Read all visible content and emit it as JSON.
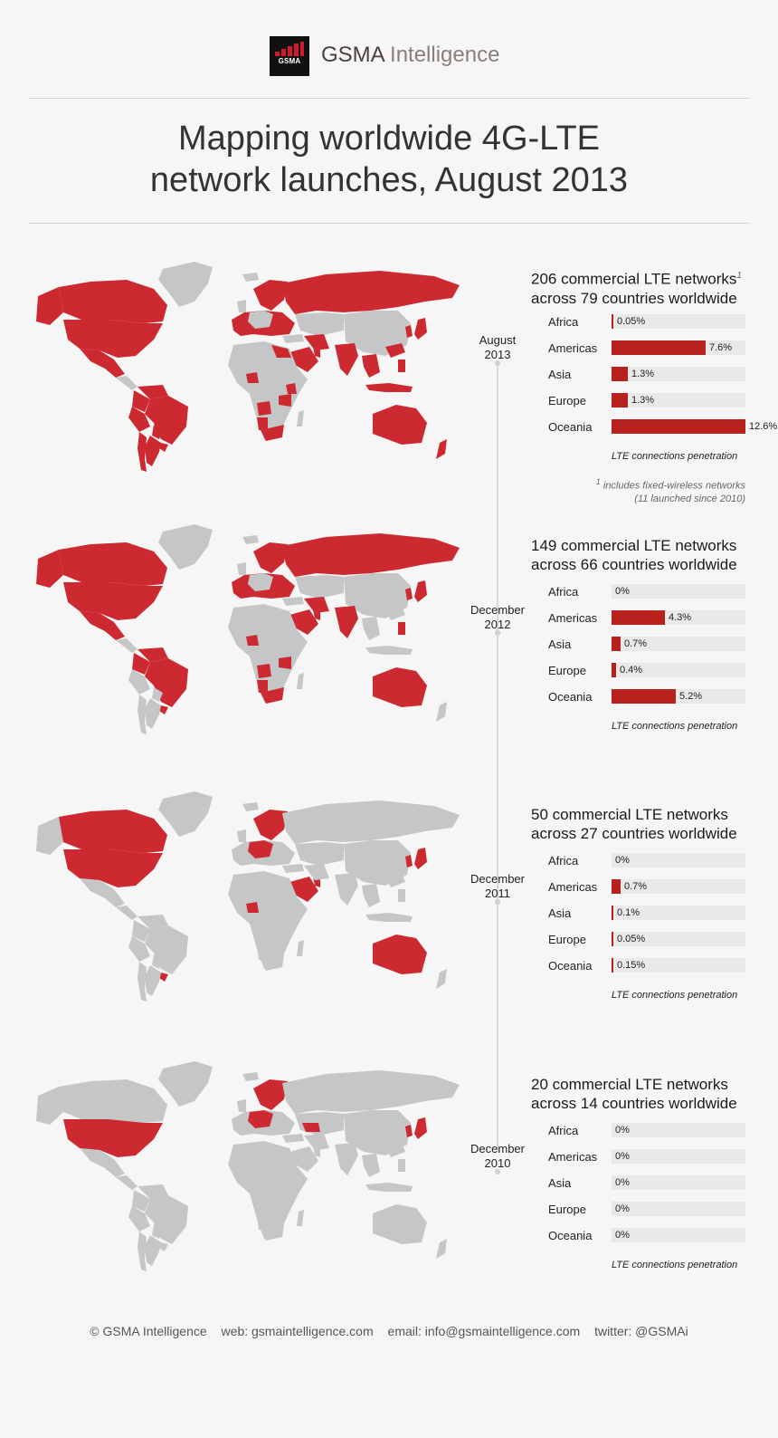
{
  "brand": {
    "name_bold": "GSMA",
    "name_light": " Intelligence",
    "logo_text": "GSMA"
  },
  "title": {
    "line1": "Mapping worldwide 4G-LTE",
    "line2": "network launches, August 2013"
  },
  "colors": {
    "highlight": "#cc2a30",
    "land": "#c5c6c8",
    "bar": "#b8211c"
  },
  "caption": "LTE connections penetration",
  "footnote": {
    "mark": "1",
    "line1": "includes fixed-wireless networks",
    "line2": "(11 launched since 2010)"
  },
  "panels": [
    {
      "date_line1": "August",
      "date_line2": "2013",
      "headline1": "206 commercial LTE networks",
      "headline2": "across 79 countries worldwide",
      "headline_mark": "1",
      "regions": [
        {
          "name": "Africa",
          "label": "0.05%",
          "value": 0.05
        },
        {
          "name": "Americas",
          "label": "7.6%",
          "value": 7.6
        },
        {
          "name": "Asia",
          "label": "1.3%",
          "value": 1.3
        },
        {
          "name": "Europe",
          "label": "1.3%",
          "value": 1.3
        },
        {
          "name": "Oceania",
          "label": "12.6%",
          "value": 12.6
        }
      ],
      "highlighted": [
        "usa",
        "canada",
        "alaska",
        "mexico",
        "brazil",
        "venezuela",
        "colombia",
        "peru",
        "chile",
        "argentina",
        "uruguay",
        "paraguay",
        "europe",
        "scandinavia",
        "russia",
        "saudi",
        "gulf",
        "iran",
        "india",
        "china_se",
        "japan",
        "korea",
        "sea",
        "philippines",
        "indonesia",
        "australia",
        "newzealand",
        "south_africa",
        "angola",
        "namibia",
        "tanzania",
        "kenya",
        "nigeria",
        "egypt_east"
      ]
    },
    {
      "date_line1": "December",
      "date_line2": "2012",
      "headline1": "149 commercial LTE networks",
      "headline2": "across 66 countries worldwide",
      "headline_mark": "",
      "regions": [
        {
          "name": "Africa",
          "label": "0%",
          "value": 0
        },
        {
          "name": "Americas",
          "label": "4.3%",
          "value": 4.3
        },
        {
          "name": "Asia",
          "label": "0.7%",
          "value": 0.7
        },
        {
          "name": "Europe",
          "label": "0.4%",
          "value": 0.4
        },
        {
          "name": "Oceania",
          "label": "5.2%",
          "value": 5.2
        }
      ],
      "highlighted": [
        "usa",
        "canada",
        "alaska",
        "mexico",
        "brazil",
        "venezuela",
        "colombia",
        "uruguay",
        "europe",
        "scandinavia",
        "russia",
        "saudi",
        "gulf",
        "iran",
        "india",
        "japan",
        "korea",
        "philippines",
        "australia",
        "south_africa",
        "angola",
        "namibia",
        "tanzania",
        "nigeria"
      ]
    },
    {
      "date_line1": "December",
      "date_line2": "2011",
      "headline1": "50 commercial LTE networks",
      "headline2": "across 27 countries worldwide",
      "headline_mark": "",
      "regions": [
        {
          "name": "Africa",
          "label": "0%",
          "value": 0
        },
        {
          "name": "Americas",
          "label": "0.7%",
          "value": 0.7
        },
        {
          "name": "Asia",
          "label": "0.1%",
          "value": 0.1
        },
        {
          "name": "Europe",
          "label": "0.05%",
          "value": 0.05
        },
        {
          "name": "Oceania",
          "label": "0.15%",
          "value": 0.15
        }
      ],
      "highlighted": [
        "usa",
        "canada",
        "scandinavia",
        "europe_partial",
        "saudi",
        "gulf",
        "japan",
        "korea",
        "australia",
        "nigeria",
        "uruguay"
      ]
    },
    {
      "date_line1": "December",
      "date_line2": "2010",
      "headline1": "20 commercial LTE networks",
      "headline2": "across 14 countries worldwide",
      "headline_mark": "",
      "regions": [
        {
          "name": "Africa",
          "label": "0%",
          "value": 0
        },
        {
          "name": "Americas",
          "label": "0%",
          "value": 0
        },
        {
          "name": "Asia",
          "label": "0%",
          "value": 0
        },
        {
          "name": "Europe",
          "label": "0%",
          "value": 0
        },
        {
          "name": "Oceania",
          "label": "0%",
          "value": 0
        }
      ],
      "highlighted": [
        "usa",
        "scandinavia",
        "europe_partial",
        "uzbekistan",
        "japan",
        "korea"
      ]
    }
  ],
  "footer": {
    "copyright": "© GSMA Intelligence",
    "web": "web: gsmaintelligence.com",
    "email": "email: info@gsmaintelligence.com",
    "twitter": "twitter: @GSMAi"
  }
}
